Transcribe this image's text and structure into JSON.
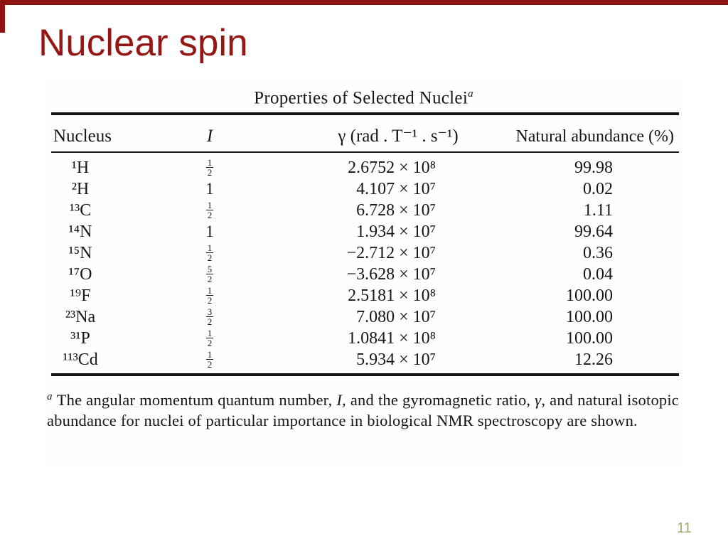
{
  "slide": {
    "title": "Nuclear spin",
    "page_number": "11"
  },
  "theme": {
    "accent_red": "#961616",
    "bar_red": "#8e1414",
    "ink": "#161616",
    "page_number_color": "#a9a66f"
  },
  "figure": {
    "caption": "Properties of Selected Nuclei",
    "caption_note": "a",
    "headers": {
      "nucleus": "Nucleus",
      "spin": "I",
      "gamma": "γ (rad . T⁻¹ . s⁻¹)",
      "abundance": "Natural abundance (%)"
    },
    "rows": [
      {
        "nucleus": "¹H",
        "spin_whole": "",
        "spin_num": "1",
        "spin_den": "2",
        "gamma": "2.6752 × 10⁸",
        "abundance": "99.98"
      },
      {
        "nucleus": "²H",
        "spin_whole": "1",
        "spin_num": "",
        "spin_den": "",
        "gamma": "4.107 × 10⁷",
        "abundance": "0.02"
      },
      {
        "nucleus": "¹³C",
        "spin_whole": "",
        "spin_num": "1",
        "spin_den": "2",
        "gamma": "6.728 × 10⁷",
        "abundance": "1.11"
      },
      {
        "nucleus": "¹⁴N",
        "spin_whole": "1",
        "spin_num": "",
        "spin_den": "",
        "gamma": "1.934 × 10⁷",
        "abundance": "99.64"
      },
      {
        "nucleus": "¹⁵N",
        "spin_whole": "",
        "spin_num": "1",
        "spin_den": "2",
        "gamma": "−2.712 × 10⁷",
        "abundance": "0.36"
      },
      {
        "nucleus": "¹⁷O",
        "spin_whole": "",
        "spin_num": "5",
        "spin_den": "2",
        "gamma": "−3.628 × 10⁷",
        "abundance": "0.04"
      },
      {
        "nucleus": "¹⁹F",
        "spin_whole": "",
        "spin_num": "1",
        "spin_den": "2",
        "gamma": "2.5181 × 10⁸",
        "abundance": "100.00"
      },
      {
        "nucleus": "²³Na",
        "spin_whole": "",
        "spin_num": "3",
        "spin_den": "2",
        "gamma": "7.080 × 10⁷",
        "abundance": "100.00"
      },
      {
        "nucleus": "³¹P",
        "spin_whole": "",
        "spin_num": "1",
        "spin_den": "2",
        "gamma": "1.0841 × 10⁸",
        "abundance": "100.00"
      },
      {
        "nucleus": "¹¹³Cd",
        "spin_whole": "",
        "spin_num": "1",
        "spin_den": "2",
        "gamma": "5.934 × 10⁷",
        "abundance": "12.26"
      }
    ],
    "footnote": {
      "marker": "a",
      "parts": [
        {
          "style": "plain",
          "text": "The angular momentum quantum number, "
        },
        {
          "style": "italic",
          "text": "I"
        },
        {
          "style": "plain",
          "text": ", and the gyromagnetic ratio, "
        },
        {
          "style": "italic",
          "text": "γ"
        },
        {
          "style": "plain",
          "text": ", and natural isotopic abundance for nuclei of particular importance in biological NMR spectroscopy are shown."
        }
      ]
    }
  }
}
